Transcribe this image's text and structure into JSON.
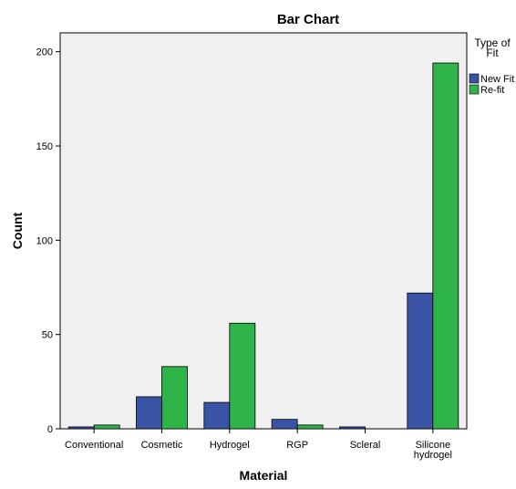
{
  "chart_data": {
    "type": "bar",
    "title": "Bar Chart",
    "xlabel": "Material",
    "ylabel": "Count",
    "categories": [
      "Conventional",
      "Cosmetic",
      "Hydrogel",
      "RGP",
      "Scleral",
      "Silicone hydrogel"
    ],
    "category_label_lines": [
      [
        "Conventional"
      ],
      [
        "Cosmetic"
      ],
      [
        "Hydrogel"
      ],
      [
        "RGP"
      ],
      [
        "Scleral"
      ],
      [
        "Silicone",
        "hydrogel"
      ]
    ],
    "series": [
      {
        "name": "New Fit",
        "color": "#3a53a4",
        "values": [
          1,
          17,
          14,
          5,
          1,
          72
        ]
      },
      {
        "name": "Re-fit",
        "color": "#2fb44a",
        "values": [
          2,
          33,
          56,
          2,
          0,
          194
        ]
      }
    ],
    "ylim": [
      0,
      210
    ],
    "yticks": [
      0,
      50,
      100,
      150,
      200
    ],
    "legend": {
      "title_lines": [
        "Type of",
        "Fit"
      ],
      "placement": "right"
    },
    "plot_background": "#f0f0f0",
    "grid": false
  }
}
